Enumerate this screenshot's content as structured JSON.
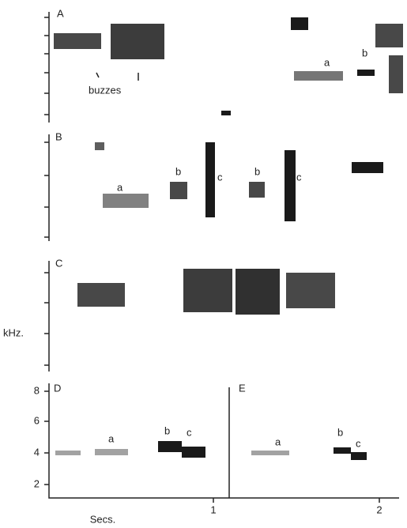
{
  "panels": [
    {
      "label": "A",
      "annotations": [
        "a",
        "b",
        "buzzes"
      ]
    },
    {
      "label": "B",
      "annotations": [
        "a",
        "b",
        "c",
        "b",
        "c"
      ]
    },
    {
      "label": "C",
      "annotations": []
    },
    {
      "label": "D",
      "annotations": [
        "a",
        "b",
        "c"
      ]
    },
    {
      "label": "E",
      "annotations": [
        "a",
        "b",
        "c"
      ]
    }
  ],
  "axes": {
    "y_label": "kHz.",
    "y_ticks": [
      8,
      6,
      4,
      2
    ],
    "x_label": "Secs.",
    "x_ticks": [
      1,
      2
    ]
  }
}
